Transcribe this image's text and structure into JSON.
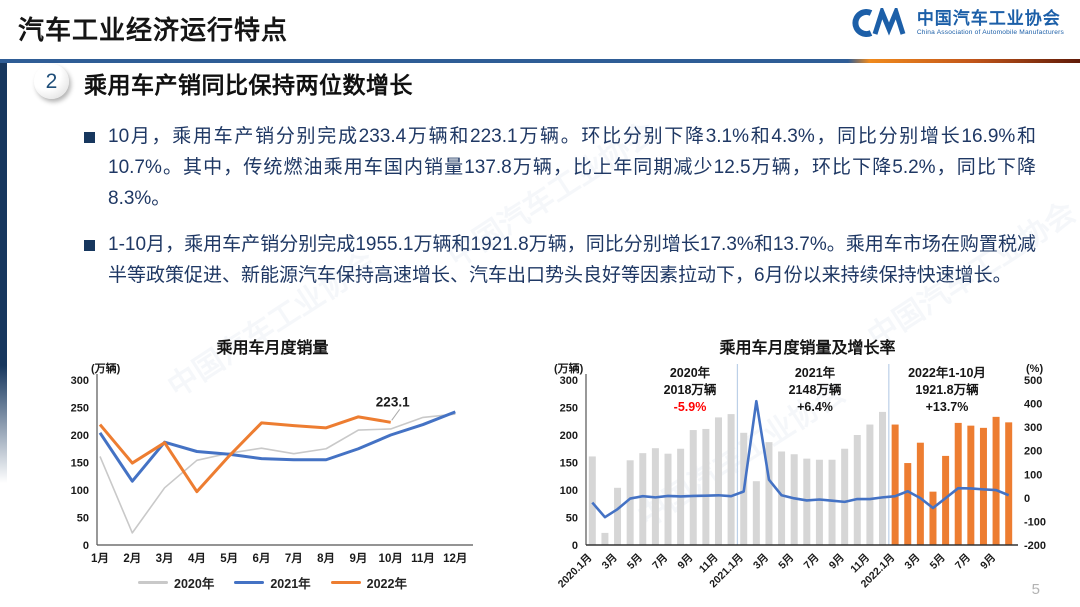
{
  "page": {
    "number": "5"
  },
  "header": {
    "title": "汽车工业经济运行特点",
    "logo": {
      "name_cn": "中国汽车工业协会",
      "name_en": "China Association of Automobile Manufacturers"
    },
    "accent": {
      "rule_blue": "#2f5d96",
      "rule_orange": "#f08a1d",
      "stripe_navy": "#17375e"
    }
  },
  "section": {
    "badge": "2",
    "title": "乘用车产销同比保持两位数增长"
  },
  "bullets": [
    {
      "text": "10月，乘用车产销分别完成233.4万辆和223.1万辆。环比分别下降3.1%和4.3%，同比分别增长16.9%和10.7%。其中，传统燃油乘用车国内销量137.8万辆，比上年同期减少12.5万辆，环比下降5.2%，同比下降8.3%。"
    },
    {
      "text": "1-10月，乘用车产销分别完成1955.1万辆和1921.8万辆，同比分别增长17.3%和13.7%。乘用车市场在购置税减半等政策促进、新能源汽车保持高速增长、汽车出口势头良好等因素拉动下，6月份以来持续保持快速增长。"
    }
  ],
  "watermark": {
    "text": "中国汽车工业协会"
  },
  "chart_data": [
    {
      "type": "line",
      "title": "乘用车月度销量",
      "ylabel": "(万辆)",
      "ylim": [
        0,
        300
      ],
      "ytick_step": 50,
      "grid": false,
      "legend_position": "bottom",
      "categories": [
        "1月",
        "2月",
        "3月",
        "4月",
        "5月",
        "6月",
        "7月",
        "8月",
        "9月",
        "10月",
        "11月",
        "12月"
      ],
      "series": [
        {
          "name": "2020年",
          "color": "#c9c9c9",
          "values": [
            161,
            22,
            104,
            154,
            167,
            176,
            166,
            175,
            209,
            211,
            232,
            238
          ]
        },
        {
          "name": "2021年",
          "color": "#4472c4",
          "values": [
            204,
            116,
            187,
            170,
            165,
            157,
            155,
            155,
            175,
            200,
            219,
            242
          ]
        },
        {
          "name": "2022年",
          "color": "#ed7d31",
          "values": [
            219,
            149,
            186,
            97,
            162,
            222,
            217,
            213,
            233,
            223.1
          ]
        }
      ],
      "point_label": {
        "series_index": 2,
        "point_index": 9,
        "text": "223.1"
      }
    },
    {
      "type": "bar+line",
      "title": "乘用车月度销量及增长率",
      "left_axis": {
        "label": "(万辆)",
        "lim": [
          0,
          300
        ],
        "step": 50
      },
      "right_axis": {
        "label": "(%)",
        "lim": [
          -200,
          500
        ],
        "step": 100
      },
      "grid": false,
      "x_tick_every": 2,
      "x_tick_labels": [
        "2020.1月",
        "3月",
        "5月",
        "7月",
        "9月",
        "11月",
        "2021.1月",
        "3月",
        "5月",
        "7月",
        "9月",
        "11月",
        "2022.1月",
        "3月",
        "5月",
        "7月",
        "9月"
      ],
      "bar_series": {
        "name": "月度销量",
        "values": [
          161,
          22,
          104,
          154,
          167,
          176,
          166,
          175,
          209,
          211,
          232,
          238,
          204,
          116,
          187,
          170,
          165,
          157,
          155,
          155,
          175,
          200,
          219,
          242,
          219,
          149,
          186,
          97,
          162,
          222,
          217,
          213,
          233,
          223
        ],
        "color_past": "#d6d6d6",
        "color_recent": "#ed7d31",
        "recent_from_index": 24
      },
      "line_series": {
        "name": "同比增长率",
        "color": "#4472c4",
        "values": [
          -20,
          -82,
          -48,
          -3,
          7,
          2,
          8,
          6,
          8,
          9,
          11,
          7,
          27,
          410,
          77,
          11,
          -2,
          -11,
          -7,
          -12,
          -17,
          -5,
          -5,
          2,
          7,
          28,
          -1,
          -43,
          -1,
          41,
          40,
          36,
          33,
          11
        ]
      },
      "dividers_at_index": [
        12,
        24
      ],
      "annotations": [
        {
          "lines": [
            "2020年",
            "2018万辆",
            "-5.9%"
          ],
          "value_color": "#ff0000"
        },
        {
          "lines": [
            "2021年",
            "2148万辆",
            "+6.4%"
          ],
          "value_color": "#151515"
        },
        {
          "lines": [
            "2022年1-10月",
            "1921.8万辆",
            "+13.7%"
          ],
          "value_color": "#151515"
        }
      ]
    }
  ]
}
